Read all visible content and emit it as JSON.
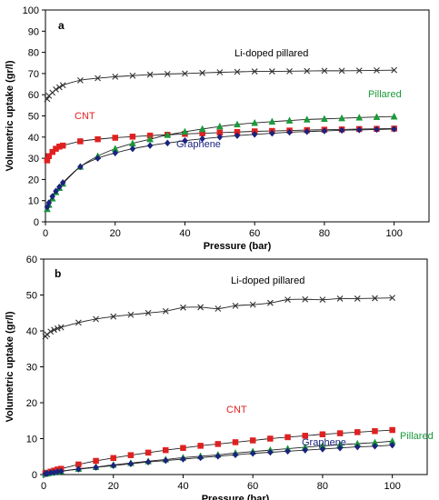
{
  "chart_data": [
    {
      "panel": "a",
      "type": "line",
      "xlabel": "Pressure (bar)",
      "ylabel": "Volumetric uptake (gr/l)",
      "xlim": [
        0,
        110
      ],
      "ylim": [
        0,
        100
      ],
      "xticks": [
        0,
        20,
        40,
        60,
        80,
        100
      ],
      "yticks": [
        0,
        10,
        20,
        30,
        40,
        50,
        60,
        70,
        80,
        90,
        100
      ],
      "grid": false,
      "series": [
        {
          "name": "Li-doped pillared",
          "color": "#333333",
          "marker": "x",
          "points": [
            [
              0.5,
              58
            ],
            [
              1,
              59.5
            ],
            [
              2,
              61
            ],
            [
              3,
              62.5
            ],
            [
              4,
              63.5
            ],
            [
              5,
              64.5
            ],
            [
              10,
              66.8
            ],
            [
              15,
              67.8
            ],
            [
              20,
              68.5
            ],
            [
              25,
              69
            ],
            [
              30,
              69.5
            ],
            [
              35,
              69.8
            ],
            [
              40,
              70
            ],
            [
              45,
              70.3
            ],
            [
              50,
              70.6
            ],
            [
              55,
              70.8
            ],
            [
              60,
              71
            ],
            [
              65,
              71
            ],
            [
              70,
              71.1
            ],
            [
              75,
              71.2
            ],
            [
              80,
              71.3
            ],
            [
              85,
              71.3
            ],
            [
              90,
              71.4
            ],
            [
              95,
              71.5
            ],
            [
              100,
              71.6
            ]
          ]
        },
        {
          "name": "CNT",
          "color": "#e02020",
          "marker": "square",
          "points": [
            [
              0.5,
              29
            ],
            [
              1,
              31
            ],
            [
              2,
              33
            ],
            [
              3,
              34.5
            ],
            [
              4,
              35.5
            ],
            [
              5,
              36
            ],
            [
              10,
              38
            ],
            [
              15,
              39
            ],
            [
              20,
              39.7
            ],
            [
              25,
              40.2
            ],
            [
              30,
              40.7
            ],
            [
              35,
              41.1
            ],
            [
              40,
              41.5
            ],
            [
              45,
              41.8
            ],
            [
              50,
              42.1
            ],
            [
              55,
              42.4
            ],
            [
              60,
              42.7
            ],
            [
              65,
              42.9
            ],
            [
              70,
              43.1
            ],
            [
              75,
              43.3
            ],
            [
              80,
              43.5
            ],
            [
              85,
              43.6
            ],
            [
              90,
              43.8
            ],
            [
              95,
              43.9
            ],
            [
              100,
              44
            ]
          ]
        },
        {
          "name": "Pillared",
          "color": "#1a9a3a",
          "marker": "triangle",
          "points": [
            [
              0.5,
              6
            ],
            [
              1,
              8
            ],
            [
              2,
              11
            ],
            [
              3,
              14
            ],
            [
              4,
              16
            ],
            [
              5,
              18
            ],
            [
              10,
              26
            ],
            [
              15,
              31
            ],
            [
              20,
              34.5
            ],
            [
              25,
              37
            ],
            [
              30,
              39
            ],
            [
              35,
              41
            ],
            [
              40,
              42.5
            ],
            [
              45,
              43.8
            ],
            [
              50,
              45
            ],
            [
              55,
              46
            ],
            [
              60,
              46.7
            ],
            [
              65,
              47.3
            ],
            [
              70,
              47.8
            ],
            [
              75,
              48.3
            ],
            [
              80,
              48.6
            ],
            [
              85,
              48.9
            ],
            [
              90,
              49.2
            ],
            [
              95,
              49.5
            ],
            [
              100,
              49.7
            ]
          ]
        },
        {
          "name": "Graphene",
          "color": "#1a237e",
          "marker": "diamond",
          "points": [
            [
              0.5,
              7
            ],
            [
              1,
              9
            ],
            [
              2,
              12
            ],
            [
              3,
              14.5
            ],
            [
              4,
              16.5
            ],
            [
              5,
              18.5
            ],
            [
              10,
              26
            ],
            [
              15,
              30
            ],
            [
              20,
              32.5
            ],
            [
              25,
              34.5
            ],
            [
              30,
              36
            ],
            [
              35,
              37.2
            ],
            [
              40,
              38.3
            ],
            [
              45,
              39.2
            ],
            [
              50,
              40
            ],
            [
              55,
              40.7
            ],
            [
              60,
              41.3
            ],
            [
              65,
              41.8
            ],
            [
              70,
              42.3
            ],
            [
              75,
              42.6
            ],
            [
              80,
              42.9
            ],
            [
              85,
              43.2
            ],
            [
              90,
              43.4
            ],
            [
              95,
              43.6
            ],
            [
              100,
              43.8
            ]
          ]
        }
      ]
    },
    {
      "panel": "b",
      "type": "line",
      "xlabel": "Pressure (bar)",
      "ylabel": "Volumetric uptake (gr/l)",
      "xlim": [
        0,
        110
      ],
      "ylim": [
        0,
        60
      ],
      "xticks": [
        0,
        20,
        40,
        60,
        80,
        100
      ],
      "yticks": [
        0,
        10,
        20,
        30,
        40,
        50,
        60
      ],
      "grid": false,
      "series": [
        {
          "name": "Li-doped pillared",
          "color": "#333333",
          "marker": "x",
          "points": [
            [
              0.5,
              38.5
            ],
            [
              1,
              39
            ],
            [
              2,
              39.8
            ],
            [
              3,
              40.3
            ],
            [
              4,
              40.7
            ],
            [
              5,
              41
            ],
            [
              10,
              42.3
            ],
            [
              15,
              43.3
            ],
            [
              20,
              44
            ],
            [
              25,
              44.5
            ],
            [
              30,
              45
            ],
            [
              35,
              45.5
            ],
            [
              40,
              46.5
            ],
            [
              45,
              46.6
            ],
            [
              50,
              46.2
            ],
            [
              55,
              47
            ],
            [
              60,
              47.3
            ],
            [
              65,
              47.8
            ],
            [
              70,
              48.7
            ],
            [
              75,
              48.8
            ],
            [
              80,
              48.7
            ],
            [
              85,
              49
            ],
            [
              90,
              49
            ],
            [
              95,
              49.1
            ],
            [
              100,
              49.2
            ]
          ]
        },
        {
          "name": "CNT",
          "color": "#e02020",
          "marker": "square",
          "points": [
            [
              0.5,
              0.3
            ],
            [
              1,
              0.5
            ],
            [
              2,
              0.8
            ],
            [
              3,
              1.1
            ],
            [
              4,
              1.4
            ],
            [
              5,
              1.6
            ],
            [
              10,
              2.8
            ],
            [
              15,
              3.8
            ],
            [
              20,
              4.6
            ],
            [
              25,
              5.4
            ],
            [
              30,
              6.1
            ],
            [
              35,
              6.8
            ],
            [
              40,
              7.4
            ],
            [
              45,
              8
            ],
            [
              50,
              8.5
            ],
            [
              55,
              9
            ],
            [
              60,
              9.5
            ],
            [
              65,
              10
            ],
            [
              70,
              10.4
            ],
            [
              75,
              10.8
            ],
            [
              80,
              11.2
            ],
            [
              85,
              11.5
            ],
            [
              90,
              11.8
            ],
            [
              95,
              12.1
            ],
            [
              100,
              12.4
            ]
          ]
        },
        {
          "name": "Pillared",
          "color": "#1a9a3a",
          "marker": "triangle",
          "points": [
            [
              0.5,
              0.2
            ],
            [
              1,
              0.3
            ],
            [
              2,
              0.5
            ],
            [
              3,
              0.6
            ],
            [
              4,
              0.8
            ],
            [
              5,
              0.9
            ],
            [
              10,
              1.6
            ],
            [
              15,
              2.1
            ],
            [
              20,
              2.7
            ],
            [
              25,
              3.2
            ],
            [
              30,
              3.7
            ],
            [
              35,
              4.2
            ],
            [
              40,
              4.7
            ],
            [
              45,
              5.1
            ],
            [
              50,
              5.5
            ],
            [
              55,
              6
            ],
            [
              60,
              6.4
            ],
            [
              65,
              6.8
            ],
            [
              70,
              7.2
            ],
            [
              75,
              7.6
            ],
            [
              80,
              8
            ],
            [
              85,
              8.3
            ],
            [
              90,
              8.6
            ],
            [
              95,
              8.9
            ],
            [
              100,
              9.3
            ]
          ]
        },
        {
          "name": "Graphene",
          "color": "#1a237e",
          "marker": "diamond",
          "points": [
            [
              0.5,
              0.2
            ],
            [
              1,
              0.3
            ],
            [
              2,
              0.5
            ],
            [
              3,
              0.6
            ],
            [
              4,
              0.8
            ],
            [
              5,
              0.9
            ],
            [
              10,
              1.5
            ],
            [
              15,
              2
            ],
            [
              20,
              2.5
            ],
            [
              25,
              3
            ],
            [
              30,
              3.5
            ],
            [
              35,
              3.9
            ],
            [
              40,
              4.3
            ],
            [
              45,
              4.7
            ],
            [
              50,
              5.1
            ],
            [
              55,
              5.5
            ],
            [
              60,
              5.9
            ],
            [
              65,
              6.2
            ],
            [
              70,
              6.5
            ],
            [
              75,
              6.8
            ],
            [
              80,
              7.1
            ],
            [
              85,
              7.4
            ],
            [
              90,
              7.7
            ],
            [
              95,
              7.9
            ],
            [
              100,
              8.2
            ]
          ]
        }
      ]
    }
  ]
}
